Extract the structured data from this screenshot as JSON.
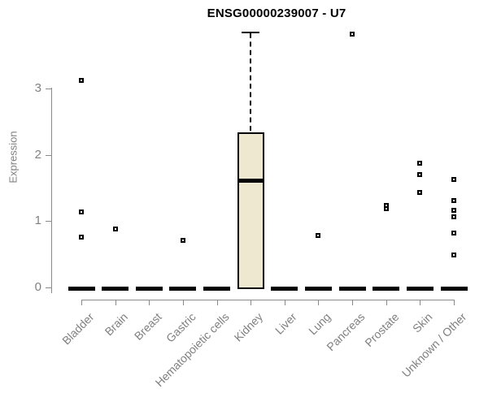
{
  "title": "ENSG00000239007 - U7",
  "chart_data": {
    "type": "boxplot",
    "title": "ENSG00000239007 - U7",
    "xlabel": "",
    "ylabel": "Expression",
    "ylim": [
      0,
      3
    ],
    "yticks": [
      0,
      1,
      2,
      3
    ],
    "grid": false,
    "legend": "none",
    "box_fill_color": "#EDE8CF",
    "box_border_color": "#000000",
    "axis_color": "#8A8A8A",
    "tick_label_color": "#808080",
    "title_color": "#000000",
    "categories": [
      "Bladder",
      "Brain",
      "Breast",
      "Gastric",
      "Hematopoietic cells",
      "Kidney",
      "Liver",
      "Lung",
      "Pancreas",
      "Prostate",
      "Skin",
      "Unknown / Other"
    ],
    "boxes": [
      {
        "category": "Bladder",
        "q1": 0,
        "median": 0,
        "q3": 0,
        "whisker_low": 0,
        "whisker_high": 0,
        "outliers": [
          3.12,
          1.14,
          0.75
        ]
      },
      {
        "category": "Brain",
        "q1": 0,
        "median": 0,
        "q3": 0,
        "whisker_low": 0,
        "whisker_high": 0,
        "outliers": [
          0.88
        ]
      },
      {
        "category": "Breast",
        "q1": 0,
        "median": 0,
        "q3": 0,
        "whisker_low": 0,
        "whisker_high": 0,
        "outliers": []
      },
      {
        "category": "Gastric",
        "q1": 0,
        "median": 0,
        "q3": 0,
        "whisker_low": 0,
        "whisker_high": 0,
        "outliers": [
          0.71
        ]
      },
      {
        "category": "Hematopoietic cells",
        "q1": 0,
        "median": 0,
        "q3": 0,
        "whisker_low": 0,
        "whisker_high": 0,
        "outliers": []
      },
      {
        "category": "Kidney",
        "q1": 0,
        "median": 1.61,
        "q3": 2.34,
        "whisker_low": 0,
        "whisker_high": 3.85,
        "outliers": []
      },
      {
        "category": "Liver",
        "q1": 0,
        "median": 0,
        "q3": 0,
        "whisker_low": 0,
        "whisker_high": 0,
        "outliers": []
      },
      {
        "category": "Lung",
        "q1": 0,
        "median": 0,
        "q3": 0,
        "whisker_low": 0,
        "whisker_high": 0,
        "outliers": [
          0.78
        ]
      },
      {
        "category": "Pancreas",
        "q1": 0,
        "median": 0,
        "q3": 0,
        "whisker_low": 0,
        "whisker_high": 0,
        "outliers": [
          3.82
        ]
      },
      {
        "category": "Prostate",
        "q1": 0,
        "median": 0,
        "q3": 0,
        "whisker_low": 0,
        "whisker_high": 0,
        "outliers": [
          1.23,
          1.19
        ]
      },
      {
        "category": "Skin",
        "q1": 0,
        "median": 0,
        "q3": 0,
        "whisker_low": 0,
        "whisker_high": 0,
        "outliers": [
          1.87,
          1.7,
          1.43
        ]
      },
      {
        "category": "Unknown / Other",
        "q1": 0,
        "median": 0,
        "q3": 0,
        "whisker_low": 0,
        "whisker_high": 0,
        "outliers": [
          1.62,
          1.31,
          1.16,
          1.06,
          0.81,
          0.48
        ]
      }
    ]
  }
}
